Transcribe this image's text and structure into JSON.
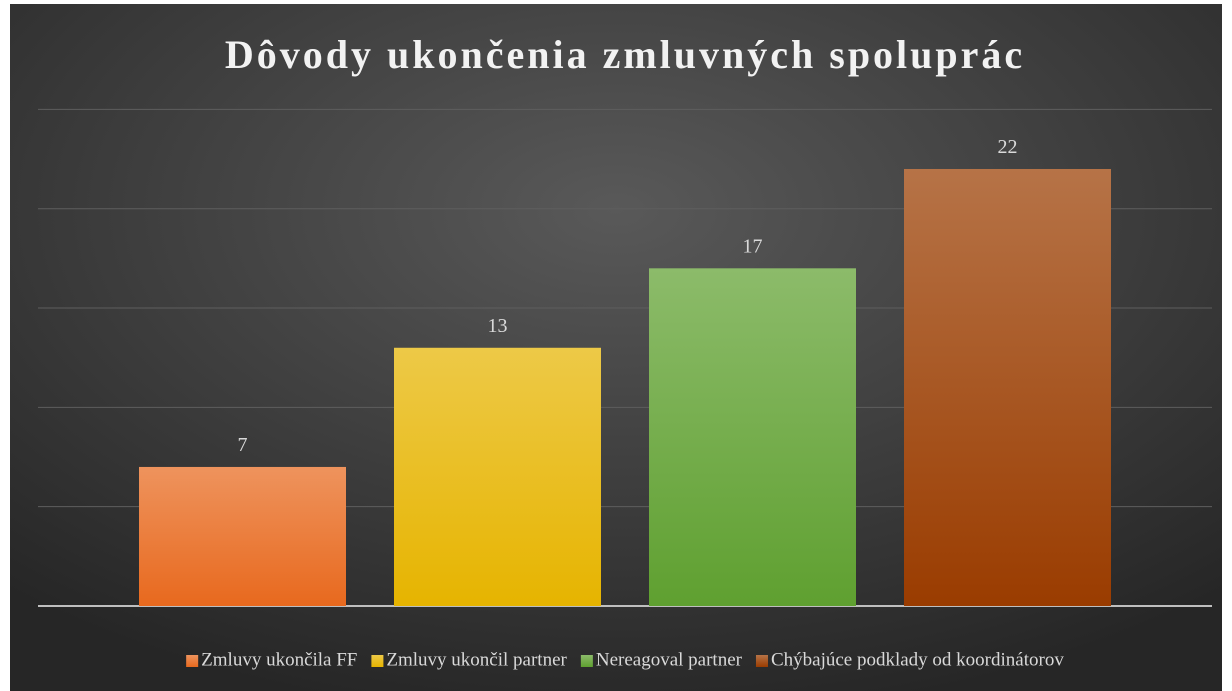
{
  "chart_data": {
    "type": "bar",
    "title": "Dôvody ukončenia zmluvných spoluprác",
    "categories": [
      null
    ],
    "series": [
      {
        "name": "Zmluvy ukončila FF",
        "color": "#e8691e",
        "values": [
          7
        ]
      },
      {
        "name": "Zmluvy ukončil partner",
        "color": "#e6b400",
        "values": [
          13
        ]
      },
      {
        "name": "Nereagoval partner",
        "color": "#5fa030",
        "values": [
          17
        ]
      },
      {
        "name": "Chýbajúce podklady od koordinátorov",
        "color": "#9a3c00",
        "values": [
          22
        ]
      }
    ],
    "ylim": [
      0,
      25
    ],
    "yticks": [
      0,
      5,
      10,
      15,
      20,
      25
    ],
    "grid": true,
    "legend": "bottom"
  }
}
